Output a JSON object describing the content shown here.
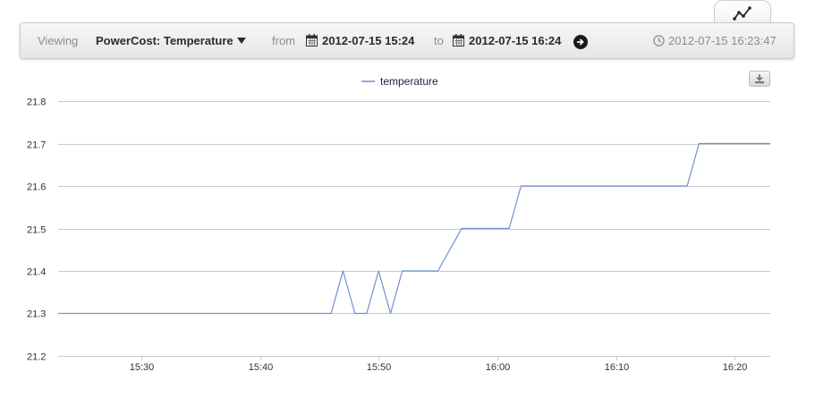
{
  "toolbar": {
    "viewing_label": "Viewing",
    "selection": "PowerCost: Temperature",
    "from_label": "from",
    "from_value": "2012-07-15 15:24",
    "to_label": "to",
    "to_value": "2012-07-15 16:24",
    "timestamp": "2012-07-15 16:23:47"
  },
  "icons": {
    "chart_tab": "line-chart-icon",
    "calendar": "calendar-icon",
    "go": "arrow-right-circle-icon",
    "clock": "clock-icon",
    "export": "download-icon"
  },
  "colors": {
    "series": "#6f8fd2",
    "grid": "#c8c8c8",
    "axis_text": "#333333"
  },
  "chart_data": {
    "type": "line",
    "legend_position": "top-center",
    "grid": true,
    "xlim": [
      "15:23",
      "16:23"
    ],
    "ylim": [
      21.2,
      21.8
    ],
    "x_ticks": [
      "15:30",
      "15:40",
      "15:50",
      "16:00",
      "16:10",
      "16:20"
    ],
    "y_ticks": [
      "21.2",
      "21.3",
      "21.4",
      "21.5",
      "21.6",
      "21.7",
      "21.8"
    ],
    "series": [
      {
        "name": "temperature",
        "x": [
          "15:23",
          "15:45",
          "15:46",
          "15:47",
          "15:48",
          "15:49",
          "15:50",
          "15:51",
          "15:52",
          "15:55",
          "15:57",
          "16:01",
          "16:02",
          "16:16",
          "16:17",
          "16:23"
        ],
        "y": [
          21.3,
          21.3,
          21.3,
          21.4,
          21.3,
          21.3,
          21.4,
          21.3,
          21.4,
          21.4,
          21.5,
          21.5,
          21.6,
          21.6,
          21.7,
          21.7
        ]
      }
    ]
  }
}
